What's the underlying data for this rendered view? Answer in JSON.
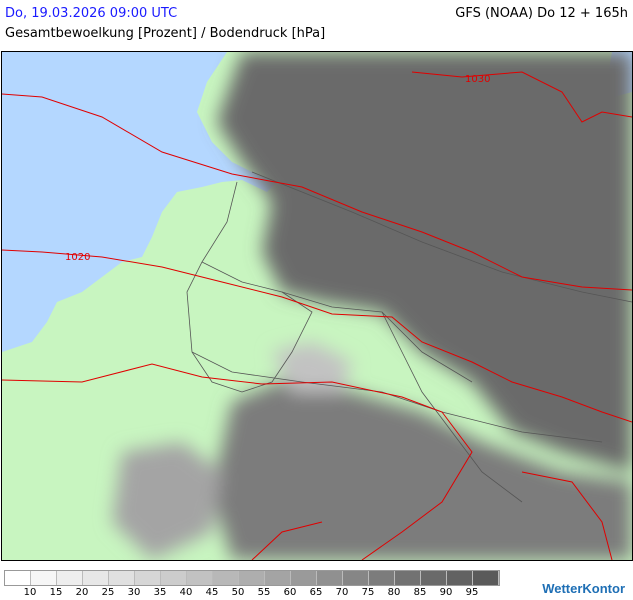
{
  "header": {
    "date": "Do, 19.03.2026 09:00 UTC",
    "model": "GFS (NOAA) Do 12 + 165h",
    "title": "Gesamtbewoelkung [Prozent] / Bodendruck [hPa]"
  },
  "map": {
    "colors": {
      "sea": "#b4d7ff",
      "land": "#c8f5c0",
      "isobar": "#e00000",
      "border": "#555555"
    },
    "isobar_labels": [
      "1020",
      "1030"
    ]
  },
  "legend": {
    "colors": [
      "#ffffff",
      "#f6f6f6",
      "#eeeeee",
      "#e7e7e7",
      "#e0e0e0",
      "#d6d6d6",
      "#cccccc",
      "#c2c2c2",
      "#b8b8b8",
      "#aeaeae",
      "#a4a4a4",
      "#9a9a9a",
      "#909090",
      "#868686",
      "#7c7c7c",
      "#727272",
      "#6a6a6a",
      "#626262",
      "#5a5a5a"
    ],
    "labels": [
      "10",
      "15",
      "20",
      "25",
      "30",
      "35",
      "40",
      "45",
      "50",
      "55",
      "60",
      "65",
      "70",
      "75",
      "80",
      "85",
      "90",
      "95"
    ]
  },
  "logo": "WetterKontor"
}
